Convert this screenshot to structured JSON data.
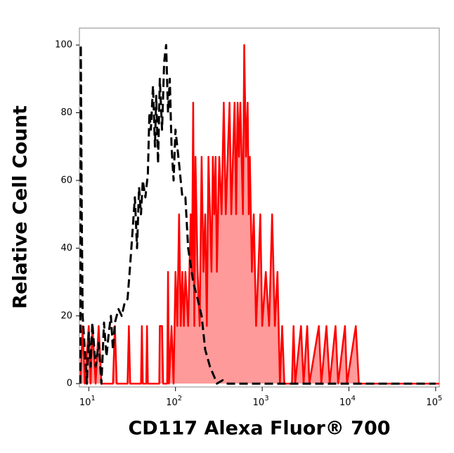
{
  "chart_data": {
    "type": "histogram-overlay",
    "xlabel": "CD117 Alexa Fluor® 700",
    "ylabel": "Relative Cell Count",
    "x_scale": "log",
    "xlim": [
      7.8,
      110000
    ],
    "ylim": [
      -1,
      105
    ],
    "xticks": [
      {
        "value": 10,
        "label": "10",
        "exponent": "1"
      },
      {
        "value": 100,
        "label": "10",
        "exponent": "2"
      },
      {
        "value": 1000,
        "label": "10",
        "exponent": "3"
      },
      {
        "value": 10000,
        "label": "10",
        "exponent": "4"
      },
      {
        "value": 100000,
        "label": "10",
        "exponent": "5"
      }
    ],
    "yticks": [
      0,
      20,
      40,
      60,
      80,
      100
    ],
    "series": [
      {
        "color": "#ff0000",
        "fill": "#ff9a9a",
        "line_style": "solid",
        "x": [
          8,
          8.5,
          9,
          10,
          10.5,
          11,
          12,
          13,
          14,
          19,
          20,
          21,
          28,
          29,
          30,
          40,
          41,
          42,
          46,
          47,
          48,
          65,
          66,
          70,
          72,
          80,
          82,
          84,
          90,
          95,
          100,
          105,
          110,
          115,
          120,
          125,
          130,
          140,
          150,
          155,
          160,
          165,
          170,
          180,
          190,
          200,
          210,
          220,
          230,
          240,
          250,
          260,
          270,
          280,
          290,
          300,
          320,
          340,
          360,
          380,
          400,
          420,
          440,
          460,
          480,
          500,
          520,
          540,
          560,
          600,
          620,
          650,
          680,
          700,
          720,
          760,
          800,
          850,
          900,
          950,
          1000,
          1100,
          1200,
          1300,
          1400,
          1500,
          1600,
          1700,
          1800,
          2200,
          2300,
          2400,
          2800,
          3000,
          3300,
          3500,
          4500,
          4800,
          5500,
          6000,
          7000,
          7500,
          9000,
          9500,
          12000,
          13000,
          110000
        ],
        "values": [
          0,
          17,
          0,
          17,
          0,
          17,
          0,
          17,
          0,
          0,
          17,
          0,
          0,
          17,
          0,
          0,
          17,
          0,
          0,
          17,
          0,
          0,
          17,
          17,
          0,
          0,
          33,
          0,
          17,
          0,
          33,
          17,
          50,
          17,
          33,
          17,
          33,
          17,
          50,
          33,
          83,
          17,
          67,
          33,
          17,
          67,
          33,
          50,
          17,
          67,
          50,
          33,
          67,
          50,
          67,
          33,
          67,
          50,
          83,
          50,
          67,
          83,
          50,
          67,
          83,
          50,
          83,
          67,
          83,
          50,
          100,
          67,
          83,
          50,
          67,
          33,
          50,
          17,
          33,
          50,
          17,
          33,
          17,
          50,
          17,
          33,
          0,
          17,
          0,
          0,
          17,
          0,
          17,
          0,
          17,
          0,
          17,
          0,
          17,
          0,
          17,
          0,
          17,
          0,
          17,
          0,
          0
        ]
      },
      {
        "color": "#000000",
        "line_style": "dashed",
        "x": [
          8,
          8.1,
          8.3,
          8.5,
          9,
          9.5,
          10,
          10.5,
          11,
          12,
          13,
          14,
          15,
          16,
          17,
          18,
          19,
          20,
          22,
          24,
          26,
          28,
          30,
          32,
          34,
          36,
          38,
          40,
          42,
          45,
          48,
          50,
          52,
          55,
          58,
          60,
          63,
          66,
          70,
          74,
          78,
          82,
          86,
          90,
          95,
          100,
          110,
          120,
          130,
          140,
          150,
          160,
          180,
          200,
          220,
          250,
          280,
          300,
          350,
          400,
          1000,
          100000
        ],
        "values": [
          0,
          100,
          50,
          20,
          10,
          0,
          15,
          5,
          18,
          5,
          12,
          0,
          18,
          8,
          15,
          20,
          10,
          18,
          22,
          20,
          24,
          25,
          35,
          45,
          55,
          40,
          58,
          50,
          60,
          55,
          62,
          80,
          75,
          88,
          70,
          85,
          65,
          90,
          75,
          95,
          100,
          80,
          90,
          70,
          60,
          75,
          65,
          55,
          55,
          40,
          35,
          30,
          25,
          20,
          10,
          5,
          2,
          0,
          1,
          0,
          0,
          0
        ]
      }
    ]
  }
}
